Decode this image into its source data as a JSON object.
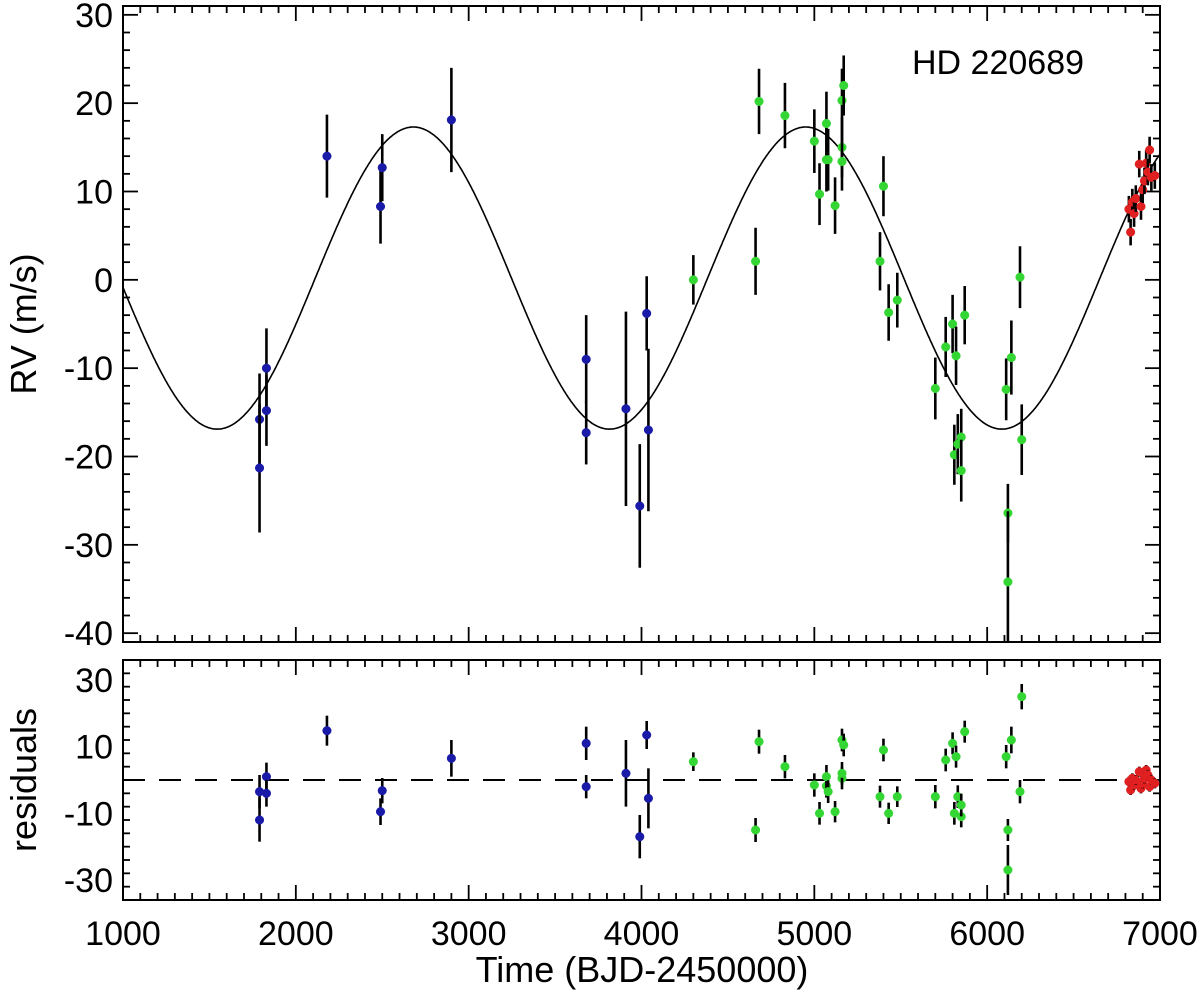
{
  "chart_data": {
    "type": "scatter",
    "annotation": "HD 220689",
    "xlabel": "Time (BJD-2450000)",
    "xlim": [
      1000,
      7000
    ],
    "x_ticks": [
      1000,
      2000,
      3000,
      4000,
      5000,
      6000,
      7000
    ],
    "colors": {
      "blue": "#1a1aa8",
      "green": "#34d634",
      "red": "#e02020",
      "axis": "#000000"
    },
    "panels": [
      {
        "name": "rv",
        "ylabel": "RV (m/s)",
        "ylim": [
          -41,
          31
        ],
        "y_ticks": [
          30,
          20,
          10,
          0,
          -10,
          -20,
          -30,
          -40
        ],
        "y_tick_labels": [
          "30",
          "20",
          "10",
          "0",
          "-10",
          "-20",
          "-30",
          "-40"
        ],
        "model_curve": {
          "amplitude": 17.1,
          "offset": 0.2,
          "period": 2270,
          "peak_time": 2680
        },
        "series": [
          {
            "color_key": "blue",
            "points": [
              [
                1790,
                -15.8,
                5.2
              ],
              [
                1790,
                -21.3,
                7.3
              ],
              [
                1830,
                -10.0,
                4.5
              ],
              [
                1830,
                -14.8,
                4.0
              ],
              [
                2180,
                14.0,
                4.7
              ],
              [
                2490,
                8.3,
                4.2
              ],
              [
                2500,
                12.7,
                3.8
              ],
              [
                2900,
                18.1,
                5.9
              ],
              [
                3680,
                -9.0,
                5.0
              ],
              [
                3680,
                -17.3,
                3.6
              ],
              [
                3910,
                -14.6,
                11.0
              ],
              [
                3990,
                -25.6,
                7.0
              ],
              [
                4030,
                -3.8,
                4.2
              ],
              [
                4040,
                -17.0,
                9.2
              ]
            ]
          },
          {
            "color_key": "green",
            "points": [
              [
                4300,
                0.0,
                2.8
              ],
              [
                4660,
                2.1,
                3.8
              ],
              [
                4680,
                20.2,
                3.7
              ],
              [
                4830,
                18.6,
                3.7
              ],
              [
                5000,
                15.7,
                3.6
              ],
              [
                5030,
                9.7,
                3.5
              ],
              [
                5070,
                13.6,
                3.6
              ],
              [
                5070,
                17.7,
                3.6
              ],
              [
                5080,
                13.6,
                3.5
              ],
              [
                5120,
                8.4,
                3.2
              ],
              [
                5160,
                15.0,
                3.4
              ],
              [
                5160,
                13.4,
                3.3
              ],
              [
                5160,
                20.3,
                3.6
              ],
              [
                5170,
                22.0,
                3.4
              ],
              [
                5380,
                2.1,
                3.3
              ],
              [
                5400,
                10.6,
                3.4
              ],
              [
                5430,
                -3.7,
                3.2
              ],
              [
                5480,
                -2.3,
                3.1
              ],
              [
                5700,
                -12.3,
                3.5
              ],
              [
                5760,
                -7.6,
                3.4
              ],
              [
                5800,
                -5.0,
                3.3
              ],
              [
                5810,
                -19.8,
                3.4
              ],
              [
                5820,
                -8.6,
                3.3
              ],
              [
                5830,
                -18.6,
                3.4
              ],
              [
                5850,
                -17.8,
                3.2
              ],
              [
                5850,
                -21.6,
                3.5
              ],
              [
                5870,
                -4.0,
                3.3
              ],
              [
                6110,
                -12.4,
                3.5
              ],
              [
                6120,
                -26.4,
                3.3
              ],
              [
                6120,
                -34.2,
                8.0
              ],
              [
                6140,
                -8.8,
                4.2
              ],
              [
                6190,
                0.3,
                3.5
              ],
              [
                6200,
                -18.1,
                4.0
              ]
            ]
          },
          {
            "color_key": "red",
            "points": [
              [
                6820,
                8.0,
                1.5
              ],
              [
                6830,
                5.4,
                1.5
              ],
              [
                6840,
                8.8,
                1.5
              ],
              [
                6850,
                7.5,
                1.5
              ],
              [
                6860,
                9.2,
                1.5
              ],
              [
                6880,
                13.1,
                1.5
              ],
              [
                6890,
                8.3,
                1.5
              ],
              [
                6900,
                10.2,
                1.5
              ],
              [
                6910,
                11.2,
                1.5
              ],
              [
                6920,
                13.2,
                1.5
              ],
              [
                6930,
                12.2,
                1.5
              ],
              [
                6940,
                14.7,
                1.5
              ],
              [
                6950,
                11.6,
                1.5
              ],
              [
                6970,
                11.8,
                1.5
              ]
            ]
          }
        ]
      },
      {
        "name": "residuals",
        "ylabel": "residuals",
        "ylim": [
          -36,
          36
        ],
        "y_ticks": [
          30,
          10,
          -10,
          -30
        ],
        "y_tick_labels": [
          "30",
          "10",
          "-10",
          "-30"
        ],
        "zero_line": true,
        "series": [
          {
            "color_key": "blue",
            "points": [
              [
                1790,
                -3.5,
                5.0
              ],
              [
                1790,
                -12.0,
                6.5
              ],
              [
                1830,
                1.0,
                4.2
              ],
              [
                1830,
                -4.0,
                4.0
              ],
              [
                2180,
                14.8,
                4.5
              ],
              [
                2490,
                -9.5,
                4.0
              ],
              [
                2500,
                -3.2,
                3.8
              ],
              [
                2900,
                6.5,
                5.5
              ],
              [
                3680,
                11.0,
                5.0
              ],
              [
                3680,
                -2.0,
                3.5
              ],
              [
                3910,
                2.0,
                10.0
              ],
              [
                3990,
                -17.0,
                6.5
              ],
              [
                4030,
                13.5,
                4.2
              ],
              [
                4040,
                -5.5,
                9.0
              ]
            ]
          },
          {
            "color_key": "green",
            "points": [
              [
                4300,
                5.5,
                2.8
              ],
              [
                4660,
                -15.0,
                3.6
              ],
              [
                4680,
                11.5,
                3.6
              ],
              [
                4830,
                4.0,
                3.5
              ],
              [
                5000,
                -1.5,
                3.5
              ],
              [
                5030,
                -10.0,
                3.4
              ],
              [
                5070,
                -1.8,
                3.5
              ],
              [
                5070,
                1.0,
                3.5
              ],
              [
                5080,
                -3.5,
                3.4
              ],
              [
                5120,
                -9.5,
                3.2
              ],
              [
                5160,
                12.0,
                3.4
              ],
              [
                5160,
                0.5,
                3.3
              ],
              [
                5160,
                2.0,
                3.4
              ],
              [
                5170,
                10.5,
                3.4
              ],
              [
                5380,
                -5.0,
                3.3
              ],
              [
                5400,
                9.0,
                3.4
              ],
              [
                5430,
                -10.0,
                3.2
              ],
              [
                5480,
                -5.0,
                3.1
              ],
              [
                5700,
                -5.0,
                3.5
              ],
              [
                5760,
                6.0,
                3.4
              ],
              [
                5800,
                11.0,
                3.3
              ],
              [
                5810,
                -10.0,
                3.4
              ],
              [
                5820,
                7.0,
                3.3
              ],
              [
                5830,
                -5.0,
                3.4
              ],
              [
                5850,
                -11.0,
                3.2
              ],
              [
                5850,
                -7.5,
                3.4
              ],
              [
                5870,
                14.5,
                3.3
              ],
              [
                6110,
                7.0,
                3.5
              ],
              [
                6120,
                -15.0,
                3.3
              ],
              [
                6120,
                -27.0,
                7.5
              ],
              [
                6140,
                12.0,
                4.0
              ],
              [
                6190,
                -3.5,
                3.5
              ],
              [
                6200,
                25.0,
                3.8
              ]
            ]
          },
          {
            "color_key": "red",
            "points": [
              [
                6820,
                -0.5,
                1.5
              ],
              [
                6830,
                -3.0,
                1.5
              ],
              [
                6840,
                0.5,
                1.5
              ],
              [
                6850,
                -1.5,
                1.5
              ],
              [
                6860,
                0.0,
                1.5
              ],
              [
                6880,
                2.5,
                1.5
              ],
              [
                6890,
                -2.5,
                1.5
              ],
              [
                6900,
                -1.0,
                1.5
              ],
              [
                6910,
                0.5,
                1.5
              ],
              [
                6920,
                3.0,
                1.5
              ],
              [
                6930,
                1.5,
                1.5
              ],
              [
                6940,
                -2.0,
                1.5
              ],
              [
                6950,
                0.0,
                1.5
              ],
              [
                6970,
                -1.0,
                1.5
              ]
            ]
          }
        ]
      }
    ]
  }
}
